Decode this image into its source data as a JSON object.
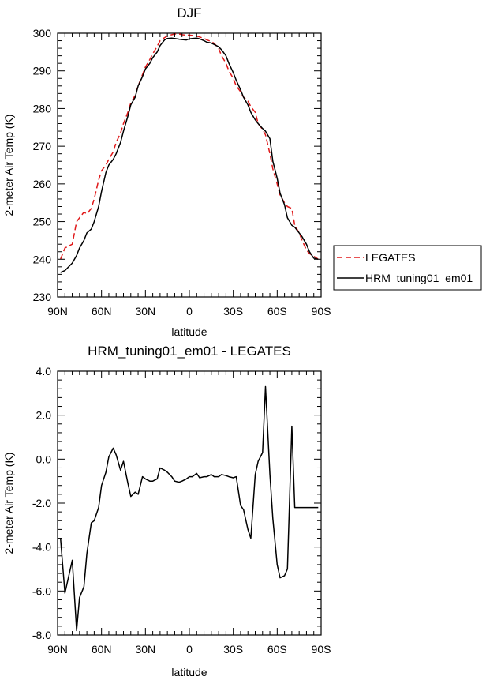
{
  "chart_data": [
    {
      "type": "line",
      "title": "DJF",
      "xlabel": "latitude",
      "ylabel": "2-meter Air Temp (K)",
      "xlim": [
        90,
        -90
      ],
      "ylim": [
        230,
        300
      ],
      "xticks": [
        90,
        60,
        30,
        0,
        -30,
        -60,
        -90
      ],
      "xtick_labels": [
        "90N",
        "60N",
        "30N",
        "0",
        "30S",
        "60S",
        "90S"
      ],
      "yticks": [
        230,
        240,
        250,
        260,
        270,
        280,
        290,
        300
      ],
      "ytick_labels": [
        "230",
        "240",
        "250",
        "260",
        "270",
        "280",
        "290",
        "300"
      ],
      "legend_position": "right",
      "series": [
        {
          "name": "LEGATES",
          "color": "#e0191a",
          "dash": "dashed",
          "x": [
            88,
            85,
            80,
            77,
            75,
            72,
            70,
            67,
            65,
            62,
            60,
            57,
            55,
            52,
            50,
            47,
            45,
            42,
            40,
            37,
            35,
            32,
            30,
            27,
            25,
            22,
            20,
            17,
            15,
            12,
            10,
            7,
            5,
            2,
            0,
            -2,
            -5,
            -7,
            -10,
            -12,
            -15,
            -17,
            -20,
            -22,
            -25,
            -27,
            -30,
            -32,
            -35,
            -37,
            -40,
            -42,
            -45,
            -47,
            -50,
            -52,
            -55,
            -57,
            -60,
            -62,
            -65,
            -67,
            -70,
            -72,
            -75,
            -77,
            -80,
            -82,
            -85,
            -87,
            -88
          ],
          "y": [
            240,
            243,
            244,
            250,
            251,
            252.5,
            252,
            253.5,
            256,
            261,
            263.5,
            265,
            266.5,
            268.5,
            271,
            273.5,
            276,
            279,
            281.5,
            283.5,
            286,
            289,
            291,
            293,
            294.5,
            296.5,
            298,
            298.8,
            299.3,
            299.6,
            299.8,
            299.8,
            299.6,
            299.5,
            299.5,
            299.4,
            299.2,
            299,
            298.6,
            298.2,
            297.8,
            297.3,
            296,
            294,
            292,
            290,
            288,
            286,
            284.5,
            283,
            282,
            280.5,
            279,
            276,
            274.5,
            273,
            268,
            264,
            260,
            257,
            255,
            254,
            253.5,
            249,
            247,
            245,
            242.5,
            241.5,
            240.8,
            240.3,
            240
          ],
          "y_note": "approximate"
        },
        {
          "name": "HRM_tuning01_em01",
          "color": "#000000",
          "dash": "solid",
          "x": [
            88,
            85,
            80,
            77,
            75,
            72,
            70,
            67,
            65,
            62,
            60,
            57,
            55,
            52,
            50,
            47,
            45,
            42,
            40,
            37,
            35,
            32,
            30,
            27,
            25,
            22,
            20,
            17,
            15,
            12,
            10,
            7,
            5,
            2,
            0,
            -2,
            -5,
            -7,
            -10,
            -12,
            -15,
            -17,
            -20,
            -22,
            -25,
            -27,
            -30,
            -32,
            -35,
            -37,
            -40,
            -42,
            -45,
            -47,
            -50,
            -52,
            -55,
            -57,
            -60,
            -62,
            -65,
            -67,
            -70,
            -72,
            -75,
            -77,
            -80,
            -82,
            -85,
            -87,
            -88
          ],
          "y": [
            236.5,
            237,
            239,
            241,
            243,
            245,
            247,
            248,
            250,
            254,
            258,
            263,
            265,
            266.5,
            268,
            271,
            274,
            278,
            281,
            283,
            286,
            288.5,
            290.5,
            292,
            293.5,
            295,
            296.7,
            298.2,
            298.6,
            298.7,
            298.6,
            298.4,
            298.3,
            298.2,
            298.5,
            298.6,
            298.7,
            298.5,
            298,
            297.6,
            297.4,
            297,
            296.4,
            295.6,
            294,
            292,
            289.5,
            287.5,
            285,
            283,
            281,
            279,
            277,
            276,
            274.7,
            274,
            272,
            266,
            261.5,
            257.5,
            254.5,
            251,
            249,
            248.5,
            247,
            246,
            244,
            242,
            240.3,
            240.1,
            240
          ],
          "y_note": "approximate"
        }
      ]
    },
    {
      "type": "line",
      "title": "HRM_tuning01_em01 - LEGATES",
      "xlabel": "latitude",
      "ylabel": "2-meter Air Temp (K)",
      "xlim": [
        90,
        -90
      ],
      "ylim": [
        -8,
        4
      ],
      "xticks": [
        90,
        60,
        30,
        0,
        -30,
        -60,
        -90
      ],
      "xtick_labels": [
        "90N",
        "60N",
        "30N",
        "0",
        "30S",
        "60S",
        "90S"
      ],
      "yticks": [
        -8,
        -6,
        -4,
        -2,
        0,
        2,
        4
      ],
      "ytick_labels": [
        "-8.0",
        "-6.0",
        "-4.0",
        "-2.0",
        "0.0",
        "2.0",
        "4.0"
      ],
      "series": [
        {
          "color": "#000000",
          "dash": "solid",
          "x": [
            88,
            85,
            80,
            77,
            75,
            72,
            70,
            67,
            65,
            62,
            60,
            57,
            55,
            52,
            50,
            47,
            45,
            42,
            40,
            37,
            35,
            32,
            30,
            27,
            25,
            22,
            20,
            17,
            15,
            12,
            10,
            7,
            5,
            2,
            0,
            -2,
            -5,
            -7,
            -10,
            -12,
            -15,
            -17,
            -20,
            -22,
            -25,
            -27,
            -30,
            -32,
            -35,
            -37,
            -40,
            -42,
            -45,
            -47,
            -50,
            -52,
            -55,
            -57,
            -60,
            -62,
            -65,
            -67,
            -70,
            -72,
            -75,
            -77,
            -80,
            -82,
            -85,
            -87,
            -88
          ],
          "y": [
            -3.6,
            -6.1,
            -4.6,
            -7.8,
            -6.3,
            -5.8,
            -4.3,
            -2.9,
            -2.8,
            -2.2,
            -1.2,
            -0.6,
            0.1,
            0.5,
            0.2,
            -0.5,
            -0.1,
            -1.1,
            -1.7,
            -1.5,
            -1.6,
            -0.8,
            -0.9,
            -1.0,
            -1.0,
            -0.9,
            -0.4,
            -0.5,
            -0.6,
            -0.8,
            -1.0,
            -1.05,
            -1.0,
            -0.9,
            -0.8,
            -0.8,
            -0.65,
            -0.85,
            -0.8,
            -0.8,
            -0.7,
            -0.8,
            -0.8,
            -0.7,
            -0.75,
            -0.8,
            -0.85,
            -0.8,
            -2.1,
            -2.3,
            -3.2,
            -3.6,
            -0.7,
            -0.1,
            0.3,
            3.3,
            -0.7,
            -2.7,
            -4.8,
            -5.4,
            -5.3,
            -5.0,
            1.5,
            -2.2,
            -2.2,
            -2.2,
            -2.2,
            -2.2,
            -2.2,
            -2.2,
            -2.2
          ],
          "y_note": "approximate"
        }
      ]
    }
  ]
}
